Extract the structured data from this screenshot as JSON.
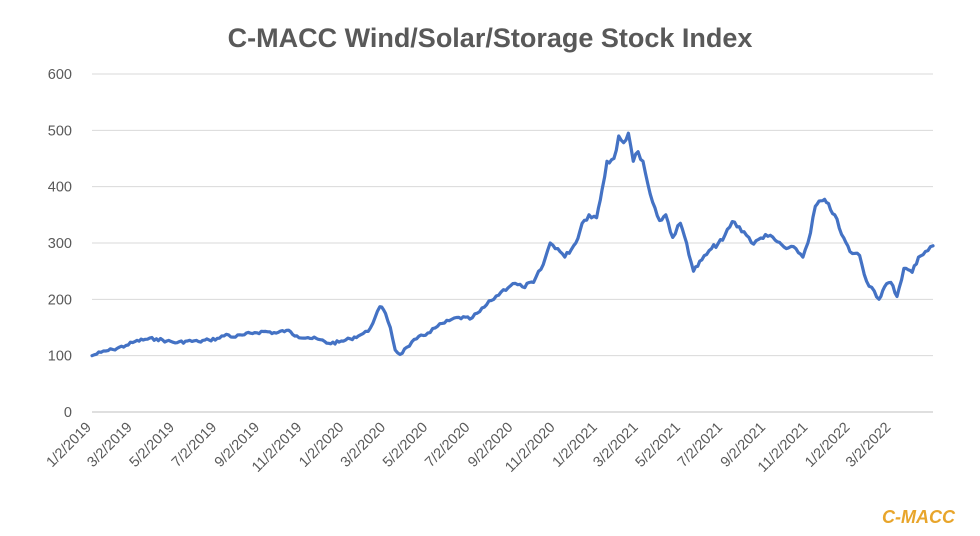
{
  "chart_data": {
    "type": "line",
    "title": "C-MACC Wind/Solar/Storage Stock Index",
    "xlabel": "",
    "ylabel": "",
    "ylim": [
      0,
      600
    ],
    "yticks": [
      "0",
      "100",
      "200",
      "300",
      "400",
      "500",
      "600"
    ],
    "xlim": [
      "1/2/2019",
      "5/1/2022"
    ],
    "xticks": [
      "1/2/2019",
      "3/2/2019",
      "5/2/2019",
      "7/2/2019",
      "9/2/2019",
      "11/2/2019",
      "1/2/2020",
      "3/2/2020",
      "5/2/2020",
      "7/2/2020",
      "9/2/2020",
      "11/2/2020",
      "1/2/2021",
      "3/2/2021",
      "5/2/2021",
      "7/2/2021",
      "9/2/2021",
      "11/2/2021",
      "1/2/2022",
      "3/2/2022"
    ],
    "grid": true,
    "legend": "none",
    "series": [
      {
        "color": "#4472C4",
        "points": [
          [
            "1/2/2019",
            100
          ],
          [
            "1/15/2019",
            106
          ],
          [
            "2/1/2019",
            111
          ],
          [
            "2/20/2019",
            118
          ],
          [
            "3/5/2019",
            125
          ],
          [
            "3/20/2019",
            129
          ],
          [
            "4/5/2019",
            130
          ],
          [
            "4/20/2019",
            126
          ],
          [
            "5/5/2019",
            123
          ],
          [
            "5/20/2019",
            126
          ],
          [
            "6/5/2019",
            125
          ],
          [
            "6/20/2019",
            128
          ],
          [
            "7/5/2019",
            131
          ],
          [
            "7/15/2019",
            138
          ],
          [
            "7/25/2019",
            133
          ],
          [
            "8/10/2019",
            137
          ],
          [
            "8/25/2019",
            141
          ],
          [
            "9/10/2019",
            143
          ],
          [
            "9/25/2019",
            140
          ],
          [
            "10/10/2019",
            145
          ],
          [
            "10/25/2019",
            135
          ],
          [
            "11/10/2019",
            132
          ],
          [
            "11/25/2019",
            129
          ],
          [
            "12/10/2019",
            122
          ],
          [
            "12/25/2019",
            124
          ],
          [
            "1/10/2020",
            130
          ],
          [
            "1/25/2020",
            137
          ],
          [
            "2/5/2020",
            143
          ],
          [
            "2/15/2020",
            168
          ],
          [
            "2/22/2020",
            187
          ],
          [
            "3/1/2020",
            175
          ],
          [
            "3/8/2020",
            150
          ],
          [
            "3/15/2020",
            110
          ],
          [
            "3/22/2020",
            102
          ],
          [
            "4/1/2020",
            115
          ],
          [
            "4/15/2020",
            130
          ],
          [
            "5/1/2020",
            140
          ],
          [
            "5/15/2020",
            152
          ],
          [
            "6/1/2020",
            162
          ],
          [
            "6/15/2020",
            168
          ],
          [
            "7/1/2020",
            165
          ],
          [
            "7/15/2020",
            178
          ],
          [
            "8/1/2020",
            198
          ],
          [
            "8/15/2020",
            213
          ],
          [
            "9/1/2020",
            228
          ],
          [
            "9/15/2020",
            222
          ],
          [
            "10/1/2020",
            230
          ],
          [
            "10/15/2020",
            262
          ],
          [
            "10/25/2020",
            300
          ],
          [
            "11/5/2020",
            290
          ],
          [
            "11/15/2020",
            275
          ],
          [
            "12/1/2020",
            300
          ],
          [
            "12/10/2020",
            335
          ],
          [
            "12/20/2020",
            350
          ],
          [
            "12/31/2020",
            345
          ],
          [
            "1/8/2021",
            395
          ],
          [
            "1/15/2021",
            445
          ],
          [
            "1/25/2021",
            450
          ],
          [
            "2/1/2021",
            490
          ],
          [
            "2/8/2021",
            478
          ],
          [
            "2/15/2021",
            495
          ],
          [
            "2/22/2021",
            445
          ],
          [
            "3/1/2021",
            462
          ],
          [
            "3/8/2021",
            445
          ],
          [
            "3/15/2021",
            405
          ],
          [
            "3/22/2021",
            372
          ],
          [
            "4/1/2021",
            340
          ],
          [
            "4/10/2021",
            350
          ],
          [
            "4/20/2021",
            310
          ],
          [
            "5/1/2021",
            335
          ],
          [
            "5/10/2021",
            300
          ],
          [
            "5/20/2021",
            250
          ],
          [
            "6/1/2021",
            270
          ],
          [
            "6/15/2021",
            290
          ],
          [
            "7/1/2021",
            305
          ],
          [
            "7/15/2021",
            338
          ],
          [
            "8/1/2021",
            320
          ],
          [
            "8/15/2021",
            298
          ],
          [
            "9/1/2021",
            315
          ],
          [
            "9/15/2021",
            305
          ],
          [
            "10/1/2021",
            290
          ],
          [
            "10/15/2021",
            290
          ],
          [
            "10/25/2021",
            275
          ],
          [
            "11/5/2021",
            318
          ],
          [
            "11/12/2021",
            365
          ],
          [
            "11/20/2021",
            375
          ],
          [
            "11/28/2021",
            372
          ],
          [
            "12/10/2021",
            350
          ],
          [
            "12/20/2021",
            315
          ],
          [
            "1/1/2022",
            285
          ],
          [
            "1/15/2022",
            278
          ],
          [
            "1/25/2022",
            232
          ],
          [
            "2/5/2022",
            215
          ],
          [
            "2/12/2022",
            200
          ],
          [
            "2/20/2022",
            222
          ],
          [
            "3/1/2022",
            230
          ],
          [
            "3/10/2022",
            205
          ],
          [
            "3/20/2022",
            255
          ],
          [
            "4/1/2022",
            248
          ],
          [
            "4/10/2022",
            275
          ],
          [
            "4/20/2022",
            285
          ],
          [
            "5/1/2022",
            295
          ]
        ]
      }
    ]
  },
  "watermark": {
    "text": "C-MACC",
    "color": "#E8A52B"
  }
}
